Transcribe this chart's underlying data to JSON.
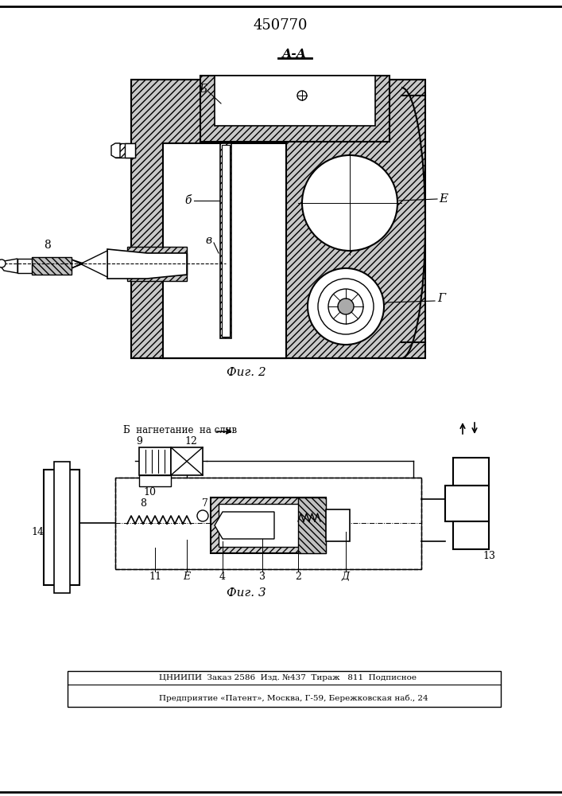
{
  "title": "450770",
  "fig_label_2": "Фиг. 2",
  "fig_label_3": "Фиг. 3",
  "section_label": "А-А",
  "footer_line1": "ЦНИИПИ  Заказ 2586  Изд. №1437  Тираж   811  Подписное",
  "footer_line2": "Предприятие «Патент», Москва, Г-59, Бережковская наб., 24",
  "bg_color": "#ffffff",
  "line_color": "#000000",
  "fig_width": 7.07,
  "fig_height": 10.0
}
